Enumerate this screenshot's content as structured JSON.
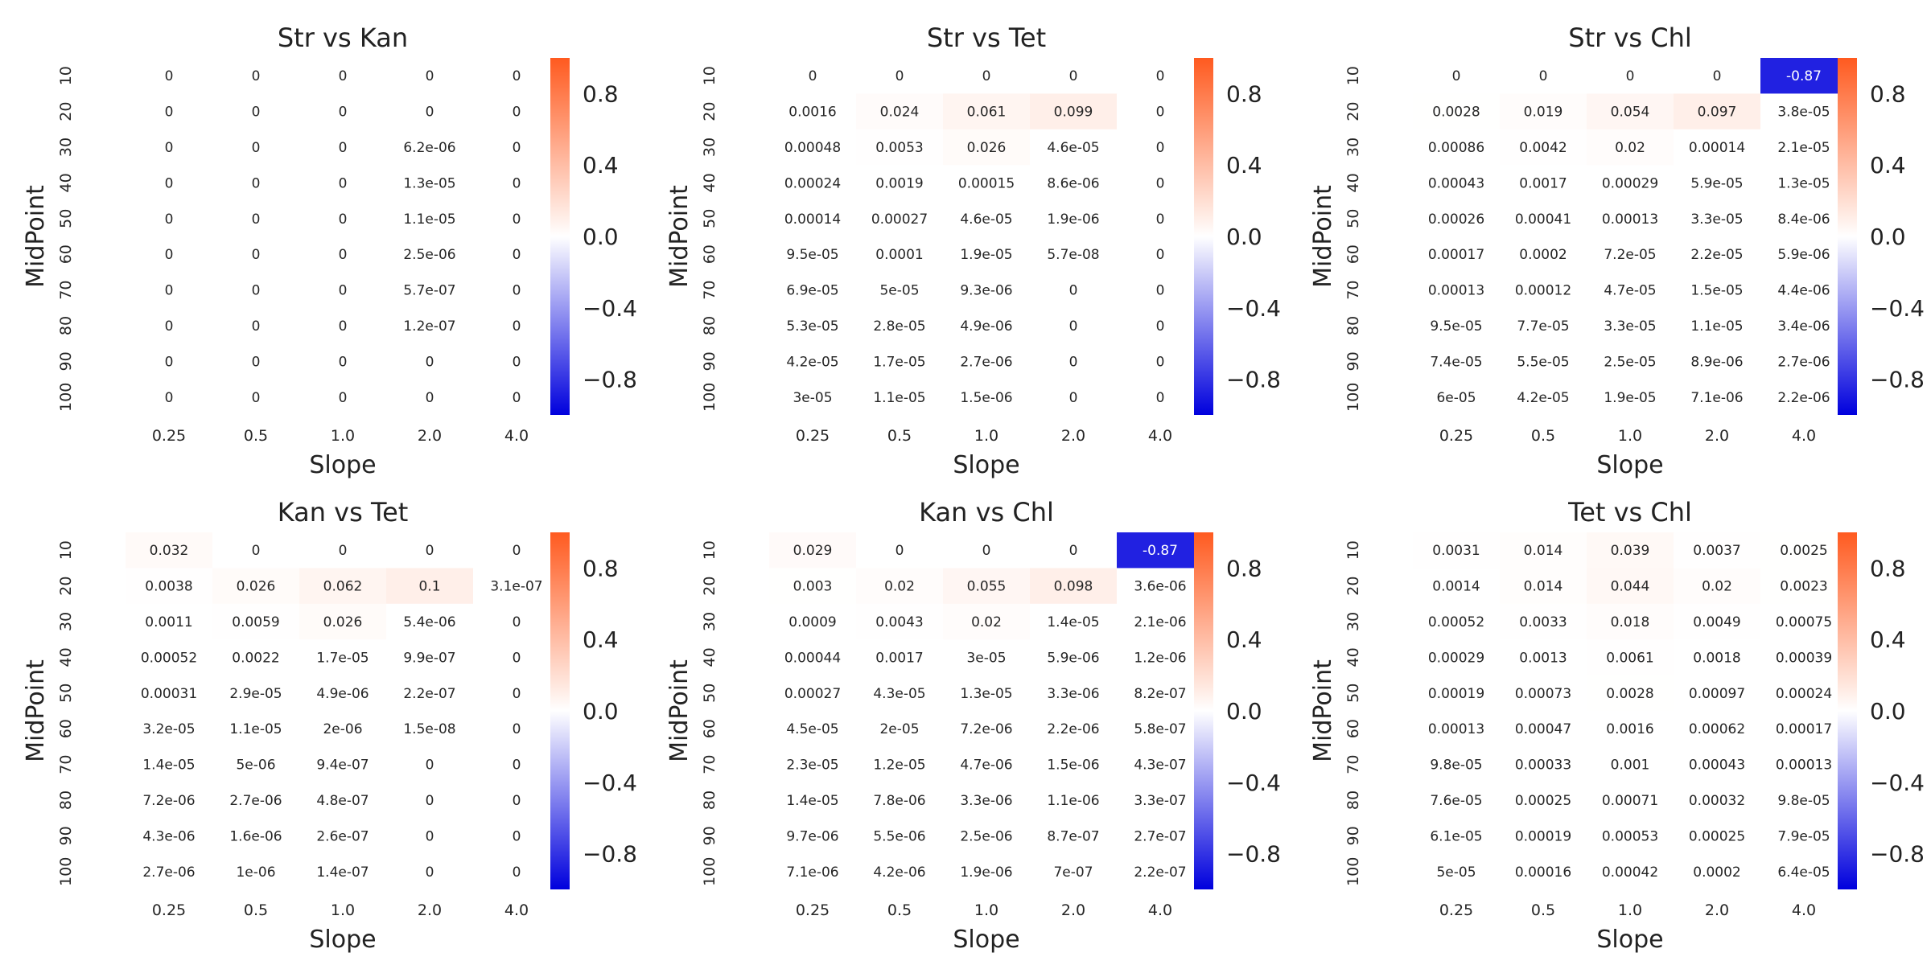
{
  "figure": {
    "background": "#ffffff"
  },
  "colormap": {
    "low": "#0000dd",
    "mid": "#ffffff",
    "high": "#ff5a1f",
    "vmin": -1.0,
    "vmax": 1.0,
    "ticks": [
      "0.8",
      "0.4",
      "0.0",
      "−0.4",
      "−0.8"
    ],
    "tick_values": [
      0.8,
      0.4,
      0.0,
      -0.4,
      -0.8
    ]
  },
  "chart_data": [
    {
      "type": "heatmap",
      "title": "Str vs Kan",
      "xlabel": "Slope",
      "ylabel": "MidPoint",
      "x_ticks": [
        "0.25",
        "0.5",
        "1.0",
        "2.0",
        "4.0"
      ],
      "y_ticks": [
        "10",
        "20",
        "30",
        "40",
        "50",
        "60",
        "70",
        "80",
        "90",
        "100"
      ],
      "colorbar_range": [
        -1,
        1
      ],
      "cells": [
        [
          "0",
          "0",
          "0",
          "0",
          "0"
        ],
        [
          "0",
          "0",
          "0",
          "0",
          "0"
        ],
        [
          "0",
          "0",
          "0",
          "6.2e-06",
          "0"
        ],
        [
          "0",
          "0",
          "0",
          "1.3e-05",
          "0"
        ],
        [
          "0",
          "0",
          "0",
          "1.1e-05",
          "0"
        ],
        [
          "0",
          "0",
          "0",
          "2.5e-06",
          "0"
        ],
        [
          "0",
          "0",
          "0",
          "5.7e-07",
          "0"
        ],
        [
          "0",
          "0",
          "0",
          "1.2e-07",
          "0"
        ],
        [
          "0",
          "0",
          "0",
          "0",
          "0"
        ],
        [
          "0",
          "0",
          "0",
          "0",
          "0"
        ]
      ]
    },
    {
      "type": "heatmap",
      "title": "Str vs Tet",
      "xlabel": "Slope",
      "ylabel": "MidPoint",
      "x_ticks": [
        "0.25",
        "0.5",
        "1.0",
        "2.0",
        "4.0"
      ],
      "y_ticks": [
        "10",
        "20",
        "30",
        "40",
        "50",
        "60",
        "70",
        "80",
        "90",
        "100"
      ],
      "colorbar_range": [
        -1,
        1
      ],
      "cells": [
        [
          "0",
          "0",
          "0",
          "0",
          "0"
        ],
        [
          "0.0016",
          "0.024",
          "0.061",
          "0.099",
          "0"
        ],
        [
          "0.00048",
          "0.0053",
          "0.026",
          "4.6e-05",
          "0"
        ],
        [
          "0.00024",
          "0.0019",
          "0.00015",
          "8.6e-06",
          "0"
        ],
        [
          "0.00014",
          "0.00027",
          "4.6e-05",
          "1.9e-06",
          "0"
        ],
        [
          "9.5e-05",
          "0.0001",
          "1.9e-05",
          "5.7e-08",
          "0"
        ],
        [
          "6.9e-05",
          "5e-05",
          "9.3e-06",
          "0",
          "0"
        ],
        [
          "5.3e-05",
          "2.8e-05",
          "4.9e-06",
          "0",
          "0"
        ],
        [
          "4.2e-05",
          "1.7e-05",
          "2.7e-06",
          "0",
          "0"
        ],
        [
          "3e-05",
          "1.1e-05",
          "1.5e-06",
          "0",
          "0"
        ]
      ]
    },
    {
      "type": "heatmap",
      "title": "Str vs Chl",
      "xlabel": "Slope",
      "ylabel": "MidPoint",
      "x_ticks": [
        "0.25",
        "0.5",
        "1.0",
        "2.0",
        "4.0"
      ],
      "y_ticks": [
        "10",
        "20",
        "30",
        "40",
        "50",
        "60",
        "70",
        "80",
        "90",
        "100"
      ],
      "colorbar_range": [
        -1,
        1
      ],
      "cells": [
        [
          "0",
          "0",
          "0",
          "0",
          "-0.87"
        ],
        [
          "0.0028",
          "0.019",
          "0.054",
          "0.097",
          "3.8e-05"
        ],
        [
          "0.00086",
          "0.0042",
          "0.02",
          "0.00014",
          "2.1e-05"
        ],
        [
          "0.00043",
          "0.0017",
          "0.00029",
          "5.9e-05",
          "1.3e-05"
        ],
        [
          "0.00026",
          "0.00041",
          "0.00013",
          "3.3e-05",
          "8.4e-06"
        ],
        [
          "0.00017",
          "0.0002",
          "7.2e-05",
          "2.2e-05",
          "5.9e-06"
        ],
        [
          "0.00013",
          "0.00012",
          "4.7e-05",
          "1.5e-05",
          "4.4e-06"
        ],
        [
          "9.5e-05",
          "7.7e-05",
          "3.3e-05",
          "1.1e-05",
          "3.4e-06"
        ],
        [
          "7.4e-05",
          "5.5e-05",
          "2.5e-05",
          "8.9e-06",
          "2.7e-06"
        ],
        [
          "6e-05",
          "4.2e-05",
          "1.9e-05",
          "7.1e-06",
          "2.2e-06"
        ]
      ]
    },
    {
      "type": "heatmap",
      "title": "Kan vs Tet",
      "xlabel": "Slope",
      "ylabel": "MidPoint",
      "x_ticks": [
        "0.25",
        "0.5",
        "1.0",
        "2.0",
        "4.0"
      ],
      "y_ticks": [
        "10",
        "20",
        "30",
        "40",
        "50",
        "60",
        "70",
        "80",
        "90",
        "100"
      ],
      "colorbar_range": [
        -1,
        1
      ],
      "cells": [
        [
          "0.032",
          "0",
          "0",
          "0",
          "0"
        ],
        [
          "0.0038",
          "0.026",
          "0.062",
          "0.1",
          "3.1e-07"
        ],
        [
          "0.0011",
          "0.0059",
          "0.026",
          "5.4e-06",
          "0"
        ],
        [
          "0.00052",
          "0.0022",
          "1.7e-05",
          "9.9e-07",
          "0"
        ],
        [
          "0.00031",
          "2.9e-05",
          "4.9e-06",
          "2.2e-07",
          "0"
        ],
        [
          "3.2e-05",
          "1.1e-05",
          "2e-06",
          "1.5e-08",
          "0"
        ],
        [
          "1.4e-05",
          "5e-06",
          "9.4e-07",
          "0",
          "0"
        ],
        [
          "7.2e-06",
          "2.7e-06",
          "4.8e-07",
          "0",
          "0"
        ],
        [
          "4.3e-06",
          "1.6e-06",
          "2.6e-07",
          "0",
          "0"
        ],
        [
          "2.7e-06",
          "1e-06",
          "1.4e-07",
          "0",
          "0"
        ]
      ]
    },
    {
      "type": "heatmap",
      "title": "Kan vs Chl",
      "xlabel": "Slope",
      "ylabel": "MidPoint",
      "x_ticks": [
        "0.25",
        "0.5",
        "1.0",
        "2.0",
        "4.0"
      ],
      "y_ticks": [
        "10",
        "20",
        "30",
        "40",
        "50",
        "60",
        "70",
        "80",
        "90",
        "100"
      ],
      "colorbar_range": [
        -1,
        1
      ],
      "cells": [
        [
          "0.029",
          "0",
          "0",
          "0",
          "-0.87"
        ],
        [
          "0.003",
          "0.02",
          "0.055",
          "0.098",
          "3.6e-06"
        ],
        [
          "0.0009",
          "0.0043",
          "0.02",
          "1.4e-05",
          "2.1e-06"
        ],
        [
          "0.00044",
          "0.0017",
          "3e-05",
          "5.9e-06",
          "1.2e-06"
        ],
        [
          "0.00027",
          "4.3e-05",
          "1.3e-05",
          "3.3e-06",
          "8.2e-07"
        ],
        [
          "4.5e-05",
          "2e-05",
          "7.2e-06",
          "2.2e-06",
          "5.8e-07"
        ],
        [
          "2.3e-05",
          "1.2e-05",
          "4.7e-06",
          "1.5e-06",
          "4.3e-07"
        ],
        [
          "1.4e-05",
          "7.8e-06",
          "3.3e-06",
          "1.1e-06",
          "3.3e-07"
        ],
        [
          "9.7e-06",
          "5.5e-06",
          "2.5e-06",
          "8.7e-07",
          "2.7e-07"
        ],
        [
          "7.1e-06",
          "4.2e-06",
          "1.9e-06",
          "7e-07",
          "2.2e-07"
        ]
      ]
    },
    {
      "type": "heatmap",
      "title": "Tet vs Chl",
      "xlabel": "Slope",
      "ylabel": "MidPoint",
      "x_ticks": [
        "0.25",
        "0.5",
        "1.0",
        "2.0",
        "4.0"
      ],
      "y_ticks": [
        "10",
        "20",
        "30",
        "40",
        "50",
        "60",
        "70",
        "80",
        "90",
        "100"
      ],
      "colorbar_range": [
        -1,
        1
      ],
      "cells": [
        [
          "0.0031",
          "0.014",
          "0.039",
          "0.0037",
          "0.0025"
        ],
        [
          "0.0014",
          "0.014",
          "0.044",
          "0.02",
          "0.0023"
        ],
        [
          "0.00052",
          "0.0033",
          "0.018",
          "0.0049",
          "0.00075"
        ],
        [
          "0.00029",
          "0.0013",
          "0.0061",
          "0.0018",
          "0.00039"
        ],
        [
          "0.00019",
          "0.00073",
          "0.0028",
          "0.00097",
          "0.00024"
        ],
        [
          "0.00013",
          "0.00047",
          "0.0016",
          "0.00062",
          "0.00017"
        ],
        [
          "9.8e-05",
          "0.00033",
          "0.001",
          "0.00043",
          "0.00013"
        ],
        [
          "7.6e-05",
          "0.00025",
          "0.00071",
          "0.00032",
          "9.8e-05"
        ],
        [
          "6.1e-05",
          "0.00019",
          "0.00053",
          "0.00025",
          "7.9e-05"
        ],
        [
          "5e-05",
          "0.00016",
          "0.00042",
          "0.0002",
          "6.4e-05"
        ]
      ]
    }
  ]
}
